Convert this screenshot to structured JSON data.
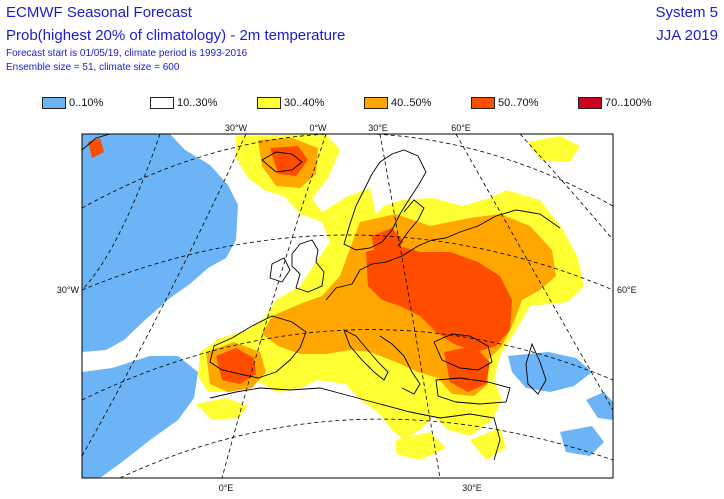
{
  "header": {
    "title_line1": "ECMWF Seasonal Forecast",
    "title_line2": "Prob(highest 20% of climatology) - 2m temperature",
    "title_line3": "Forecast start is 01/05/19, climate period is 1993-2016",
    "title_line4": "Ensemble size = 51, climate size = 600",
    "system": "System 5",
    "season": "JJA 2019"
  },
  "legend": [
    {
      "label": "0..10%",
      "color": "#6cb4f5"
    },
    {
      "label": "10..30%",
      "color": "#ffffff"
    },
    {
      "label": "30..40%",
      "color": "#ffff33"
    },
    {
      "label": "40..50%",
      "color": "#ffa600"
    },
    {
      "label": "50..70%",
      "color": "#ff4d00"
    },
    {
      "label": "70..100%",
      "color": "#cc0022"
    }
  ],
  "axis_labels": {
    "top": [
      "30°W",
      "0°W",
      "30°E",
      "60°E"
    ],
    "left": "30°W",
    "right": "60°E",
    "bottom": [
      "0°E",
      "30°E"
    ]
  }
}
